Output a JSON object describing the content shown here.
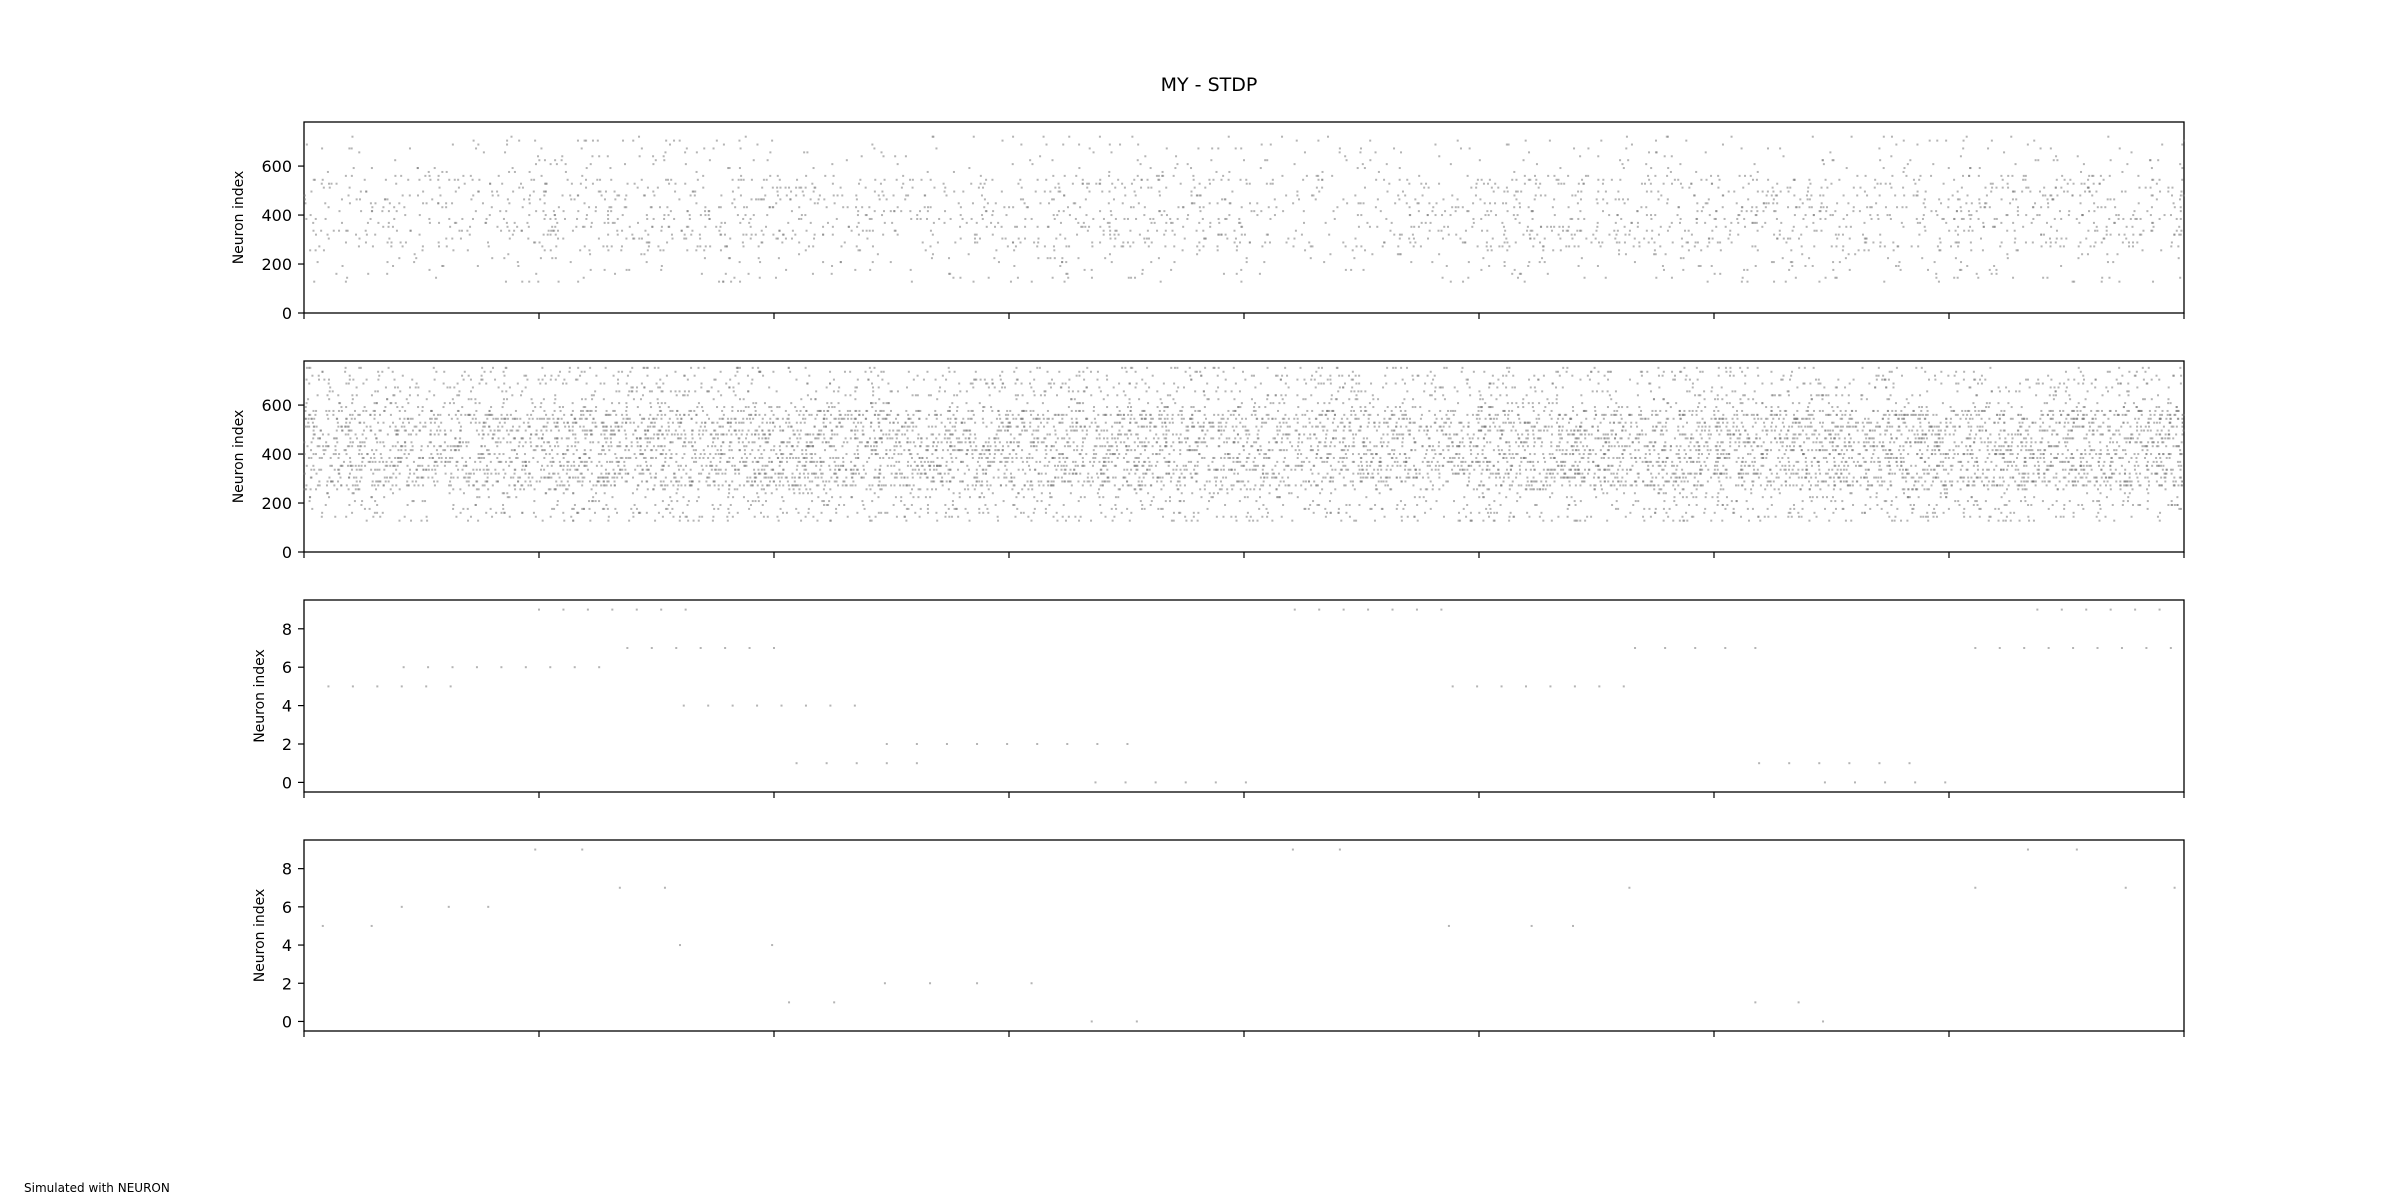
{
  "figure": {
    "title": "MY - STDP",
    "footnote": "Simulated with NEURON"
  },
  "chart_data": [
    {
      "type": "scatter",
      "title": "",
      "xlabel": "",
      "ylabel": "Neuron index",
      "ylim": [
        0,
        780
      ],
      "yticks": [
        0,
        200,
        400,
        600
      ],
      "xtick_count": 9,
      "xtick_labels_visible": false,
      "marker_color": "#777777",
      "n_points": 2600,
      "density_profile": [
        0.55,
        0.75,
        0.6,
        0.7,
        0.55,
        0.75,
        0.7,
        0.8
      ],
      "band_range": [
        120,
        730
      ]
    },
    {
      "type": "scatter",
      "title": "",
      "xlabel": "",
      "ylabel": "Neuron index",
      "ylim": [
        0,
        780
      ],
      "yticks": [
        0,
        200,
        400,
        600
      ],
      "xtick_count": 9,
      "xtick_labels_visible": false,
      "marker_color": "#777777",
      "n_points": 9000,
      "density_profile": [
        0.8,
        1.0,
        0.95,
        0.9,
        0.85,
        0.95,
        1.0,
        1.0
      ],
      "band_range": [
        120,
        760
      ]
    },
    {
      "type": "scatter",
      "title": "",
      "xlabel": "",
      "ylabel": "Neuron index",
      "ylim": [
        -0.5,
        9.5
      ],
      "yticks": [
        0,
        2,
        4,
        6,
        8
      ],
      "xtick_count": 9,
      "xtick_labels_visible": false,
      "marker_color": "#777777",
      "points": [
        [
          0.013,
          5
        ],
        [
          0.026,
          5
        ],
        [
          0.039,
          5
        ],
        [
          0.052,
          5
        ],
        [
          0.065,
          5
        ],
        [
          0.078,
          5
        ],
        [
          0.053,
          6
        ],
        [
          0.066,
          6
        ],
        [
          0.079,
          6
        ],
        [
          0.092,
          6
        ],
        [
          0.105,
          6
        ],
        [
          0.118,
          6
        ],
        [
          0.131,
          6
        ],
        [
          0.144,
          6
        ],
        [
          0.157,
          6
        ],
        [
          0.125,
          9
        ],
        [
          0.138,
          9
        ],
        [
          0.151,
          9
        ],
        [
          0.164,
          9
        ],
        [
          0.177,
          9
        ],
        [
          0.19,
          9
        ],
        [
          0.203,
          9
        ],
        [
          0.172,
          7
        ],
        [
          0.185,
          7
        ],
        [
          0.198,
          7
        ],
        [
          0.211,
          7
        ],
        [
          0.224,
          7
        ],
        [
          0.237,
          7
        ],
        [
          0.25,
          7
        ],
        [
          0.202,
          4
        ],
        [
          0.215,
          4
        ],
        [
          0.228,
          4
        ],
        [
          0.241,
          4
        ],
        [
          0.254,
          4
        ],
        [
          0.267,
          4
        ],
        [
          0.28,
          4
        ],
        [
          0.293,
          4
        ],
        [
          0.262,
          1
        ],
        [
          0.278,
          1
        ],
        [
          0.294,
          1
        ],
        [
          0.31,
          1
        ],
        [
          0.326,
          1
        ],
        [
          0.31,
          2
        ],
        [
          0.326,
          2
        ],
        [
          0.342,
          2
        ],
        [
          0.358,
          2
        ],
        [
          0.374,
          2
        ],
        [
          0.39,
          2
        ],
        [
          0.406,
          2
        ],
        [
          0.422,
          2
        ],
        [
          0.438,
          2
        ],
        [
          0.421,
          0
        ],
        [
          0.437,
          0
        ],
        [
          0.453,
          0
        ],
        [
          0.469,
          0
        ],
        [
          0.485,
          0
        ],
        [
          0.501,
          0
        ],
        [
          0.527,
          9
        ],
        [
          0.54,
          9
        ],
        [
          0.553,
          9
        ],
        [
          0.566,
          9
        ],
        [
          0.579,
          9
        ],
        [
          0.592,
          9
        ],
        [
          0.605,
          9
        ],
        [
          0.611,
          5
        ],
        [
          0.624,
          5
        ],
        [
          0.637,
          5
        ],
        [
          0.65,
          5
        ],
        [
          0.663,
          5
        ],
        [
          0.676,
          5
        ],
        [
          0.689,
          5
        ],
        [
          0.702,
          5
        ],
        [
          0.708,
          7
        ],
        [
          0.724,
          7
        ],
        [
          0.74,
          7
        ],
        [
          0.756,
          7
        ],
        [
          0.772,
          7
        ],
        [
          0.774,
          1
        ],
        [
          0.79,
          1
        ],
        [
          0.806,
          1
        ],
        [
          0.822,
          1
        ],
        [
          0.838,
          1
        ],
        [
          0.854,
          1
        ],
        [
          0.809,
          0
        ],
        [
          0.825,
          0
        ],
        [
          0.841,
          0
        ],
        [
          0.857,
          0
        ],
        [
          0.873,
          0
        ],
        [
          0.889,
          7
        ],
        [
          0.902,
          7
        ],
        [
          0.915,
          7
        ],
        [
          0.928,
          7
        ],
        [
          0.941,
          7
        ],
        [
          0.954,
          7
        ],
        [
          0.967,
          7
        ],
        [
          0.98,
          7
        ],
        [
          0.993,
          7
        ],
        [
          0.922,
          9
        ],
        [
          0.935,
          9
        ],
        [
          0.948,
          9
        ],
        [
          0.961,
          9
        ],
        [
          0.974,
          9
        ],
        [
          0.987,
          9
        ]
      ]
    },
    {
      "type": "scatter",
      "title": "",
      "xlabel": "",
      "ylabel": "Neuron index",
      "ylim": [
        -0.5,
        9.5
      ],
      "yticks": [
        0,
        2,
        4,
        6,
        8
      ],
      "xtick_count": 9,
      "xtick_labels_visible": false,
      "marker_color": "#777777",
      "points": [
        [
          0.01,
          5
        ],
        [
          0.036,
          5
        ],
        [
          0.052,
          6
        ],
        [
          0.077,
          6
        ],
        [
          0.098,
          6
        ],
        [
          0.123,
          9
        ],
        [
          0.148,
          9
        ],
        [
          0.168,
          7
        ],
        [
          0.192,
          7
        ],
        [
          0.2,
          4
        ],
        [
          0.249,
          4
        ],
        [
          0.258,
          1
        ],
        [
          0.282,
          1
        ],
        [
          0.309,
          2
        ],
        [
          0.333,
          2
        ],
        [
          0.358,
          2
        ],
        [
          0.387,
          2
        ],
        [
          0.419,
          0
        ],
        [
          0.443,
          0
        ],
        [
          0.526,
          9
        ],
        [
          0.551,
          9
        ],
        [
          0.609,
          5
        ],
        [
          0.653,
          5
        ],
        [
          0.675,
          5
        ],
        [
          0.705,
          7
        ],
        [
          0.772,
          1
        ],
        [
          0.795,
          1
        ],
        [
          0.808,
          0
        ],
        [
          0.889,
          7
        ],
        [
          0.917,
          9
        ],
        [
          0.943,
          9
        ],
        [
          0.969,
          7
        ],
        [
          0.995,
          7
        ]
      ]
    }
  ]
}
